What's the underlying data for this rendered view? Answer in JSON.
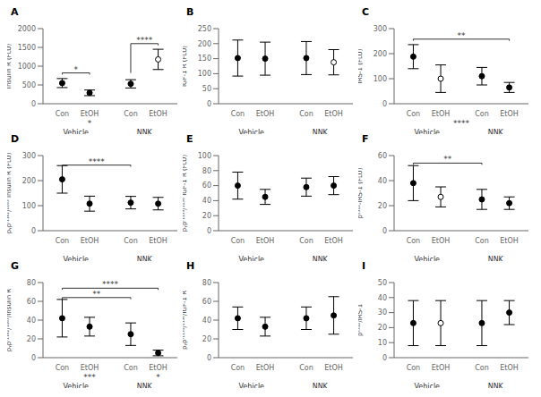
{
  "chart_data": [
    {
      "type": "scatter",
      "title": "A",
      "y_label": "Insulin R (FLU)",
      "categories": [
        "Con",
        "EtOH",
        "Con",
        "EtOH"
      ],
      "category_groups": [
        "Vehicle",
        "Vehicle",
        "NNK",
        "NNK"
      ],
      "values": [
        550,
        290,
        530,
        1180
      ],
      "errors": [
        120,
        75,
        110,
        270
      ],
      "markers": [
        "filled",
        "filled",
        "filled",
        "open"
      ],
      "color": "#000000",
      "ylim": [
        0,
        2000
      ],
      "yticks": [
        0,
        500,
        1000,
        1500,
        2000
      ],
      "grid": false,
      "annotations": [
        {
          "text": "*",
          "from": 0,
          "to": 1,
          "y": 820
        },
        {
          "text": "****",
          "from": 2,
          "to": 3,
          "y": 1600,
          "from_y": 820
        }
      ],
      "below_axis": [
        {
          "text": "*",
          "under": [
            1
          ]
        }
      ]
    },
    {
      "type": "scatter",
      "title": "B",
      "y_label": "IGF-1 R (FLU)",
      "categories": [
        "Con",
        "EtOH",
        "Con",
        "EtOH"
      ],
      "category_groups": [
        "Vehicle",
        "Vehicle",
        "NNK",
        "NNK"
      ],
      "values": [
        152,
        150,
        152,
        138
      ],
      "errors": [
        60,
        55,
        55,
        42
      ],
      "markers": [
        "filled",
        "filled",
        "filled",
        "open"
      ],
      "color": "#000000",
      "ylim": [
        0,
        250
      ],
      "yticks": [
        0,
        50,
        100,
        150,
        200,
        250
      ],
      "grid": false,
      "annotations": [],
      "below_axis": []
    },
    {
      "type": "scatter",
      "title": "C",
      "y_label": "IRS-1 (FLU)",
      "categories": [
        "Con",
        "EtOH",
        "Con",
        "EtOH"
      ],
      "category_groups": [
        "Vehicle",
        "Vehicle",
        "NNK",
        "NNK"
      ],
      "values": [
        188,
        100,
        110,
        65
      ],
      "errors": [
        48,
        55,
        35,
        20
      ],
      "markers": [
        "filled",
        "open",
        "filled",
        "filled"
      ],
      "color": "#000000",
      "ylim": [
        0,
        300
      ],
      "yticks": [
        0,
        100,
        200,
        300
      ],
      "grid": false,
      "annotations": [
        {
          "text": "**",
          "from": 0,
          "to": 3,
          "y": 258
        }
      ],
      "below_axis": [
        {
          "text": "****",
          "under": [
            1,
            2
          ]
        }
      ]
    },
    {
      "type": "scatter",
      "title": "D",
      "y_label": "pᵧpʳ¹¹⁶²/¹¹⁶³ Insulin R (FLU)",
      "categories": [
        "Con",
        "EtOH",
        "Con",
        "EtOH"
      ],
      "category_groups": [
        "Vehicle",
        "Vehicle",
        "NNK",
        "NNK"
      ],
      "values": [
        205,
        108,
        112,
        108
      ],
      "errors": [
        55,
        30,
        25,
        25
      ],
      "markers": [
        "filled",
        "filled",
        "filled",
        "filled"
      ],
      "color": "#000000",
      "ylim": [
        0,
        300
      ],
      "yticks": [
        0,
        100,
        200,
        300
      ],
      "grid": false,
      "annotations": [
        {
          "text": "****",
          "from": 0,
          "to": 2,
          "y": 262
        }
      ],
      "below_axis": []
    },
    {
      "type": "scatter",
      "title": "E",
      "y_label": "pᵧpʳ¹¹³⁵/¹¹³⁶ IGF-1 R (FLU)",
      "categories": [
        "Con",
        "EtOH",
        "Con",
        "EtOH"
      ],
      "category_groups": [
        "Vehicle",
        "Vehicle",
        "NNK",
        "NNK"
      ],
      "values": [
        60,
        45,
        58,
        60
      ],
      "errors": [
        18,
        10,
        12,
        12
      ],
      "markers": [
        "filled",
        "filled",
        "filled",
        "filled"
      ],
      "color": "#000000",
      "ylim": [
        0,
        100
      ],
      "yticks": [
        0,
        20,
        40,
        60,
        80,
        100
      ],
      "grid": false,
      "annotations": [],
      "below_axis": []
    },
    {
      "type": "scatter",
      "title": "F",
      "y_label": "pˢ³¹²-IRS-1 (FLU)",
      "categories": [
        "Con",
        "EtOH",
        "Con",
        "EtOH"
      ],
      "category_groups": [
        "Vehicle",
        "Vehicle",
        "NNK",
        "NNK"
      ],
      "values": [
        38,
        27,
        25,
        22
      ],
      "errors": [
        14,
        8,
        8,
        5
      ],
      "markers": [
        "filled",
        "open",
        "filled",
        "filled"
      ],
      "color": "#000000",
      "ylim": [
        0,
        60
      ],
      "yticks": [
        0,
        20,
        40,
        60
      ],
      "grid": false,
      "annotations": [
        {
          "text": "**",
          "from": 0,
          "to": 2,
          "y": 54
        }
      ],
      "below_axis": []
    },
    {
      "type": "scatter",
      "title": "G",
      "y_label": "pᵧpʳ¹¹⁶²/¹¹⁶³/Insulin R",
      "categories": [
        "Con",
        "EtOH",
        "Con",
        "EtOH"
      ],
      "category_groups": [
        "Vehicle",
        "Vehicle",
        "NNK",
        "NNK"
      ],
      "values": [
        42,
        33,
        25,
        5
      ],
      "errors": [
        20,
        10,
        12,
        3
      ],
      "markers": [
        "filled",
        "filled",
        "filled",
        "filled"
      ],
      "color": "#000000",
      "ylim": [
        0,
        80
      ],
      "yticks": [
        0,
        20,
        40,
        60,
        80
      ],
      "grid": false,
      "annotations": [
        {
          "text": "****",
          "from": 0,
          "to": 3,
          "y": 74
        },
        {
          "text": "**",
          "from": 0,
          "to": 2,
          "y": 64
        }
      ],
      "below_axis": [
        {
          "text": "***",
          "under": [
            1
          ]
        },
        {
          "text": "*",
          "under": [
            3
          ]
        }
      ]
    },
    {
      "type": "scatter",
      "title": "H",
      "y_label": "pᵧpʳ¹¹³⁵/¹¹³⁶/IGF-1 R",
      "categories": [
        "Con",
        "EtOH",
        "Con",
        "EtOH"
      ],
      "category_groups": [
        "Vehicle",
        "Vehicle",
        "NNK",
        "NNK"
      ],
      "values": [
        42,
        33,
        42,
        45
      ],
      "errors": [
        12,
        10,
        12,
        20
      ],
      "markers": [
        "filled",
        "filled",
        "filled",
        "filled"
      ],
      "color": "#000000",
      "ylim": [
        0,
        80
      ],
      "yticks": [
        0,
        20,
        40,
        60,
        80
      ],
      "grid": false,
      "annotations": [],
      "below_axis": []
    },
    {
      "type": "scatter",
      "title": "I",
      "y_label": "pˢ³¹²/IRS-1",
      "categories": [
        "Con",
        "EtOH",
        "Con",
        "EtOH"
      ],
      "category_groups": [
        "Vehicle",
        "Vehicle",
        "NNK",
        "NNK"
      ],
      "values": [
        23,
        23,
        23,
        30
      ],
      "errors": [
        15,
        15,
        15,
        8
      ],
      "markers": [
        "filled",
        "open",
        "filled",
        "filled"
      ],
      "color": "#000000",
      "ylim": [
        0,
        50
      ],
      "yticks": [
        0,
        10,
        20,
        30,
        40,
        50
      ],
      "grid": false,
      "annotations": [],
      "below_axis": []
    }
  ]
}
